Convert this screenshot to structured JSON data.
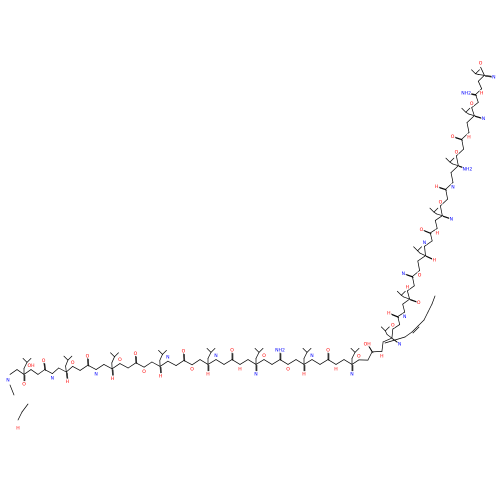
{
  "diagram": {
    "type": "skeletal-formula",
    "colors": {
      "bond": "#000000",
      "O": "#ff0000",
      "N": "#0000ff",
      "background": "#ffffff"
    },
    "atom_labels": [
      "O",
      "OH",
      "O",
      "N",
      "H",
      "O",
      "O",
      "N",
      "H",
      "O",
      "O",
      "O",
      "H",
      "N",
      "O",
      "O",
      "H",
      "N",
      "O",
      "H",
      "N",
      "O",
      "NH2",
      "O",
      "H",
      "N",
      "O",
      "H",
      "N",
      "O",
      "OH",
      "H",
      "N",
      "O",
      "H",
      "N",
      "O",
      "H",
      "N",
      "O",
      "H",
      "N",
      "O",
      "H",
      "N",
      "O",
      "H",
      "N",
      "NH2",
      "O",
      "O",
      "H",
      "N",
      "O",
      "NH2",
      "H",
      "N",
      "O",
      "H",
      "N",
      "O",
      "OH",
      "O",
      "H",
      "N",
      "O",
      "H",
      "N",
      "O",
      "OH",
      "O",
      "H",
      "N",
      "O",
      "NH",
      "H2N",
      "NH",
      "H",
      "N",
      "O",
      "H",
      "N",
      "O",
      "H",
      "N",
      "O",
      "O",
      "OH",
      "H",
      "N",
      "O",
      "H",
      "N",
      "O",
      "NH2",
      "O",
      "H",
      "N",
      "O",
      "H",
      "N",
      "O",
      "OH",
      "O",
      "H",
      "N",
      "O",
      "H",
      "N",
      "O",
      "OH",
      "H",
      "N",
      "O",
      "O",
      "H",
      "N",
      "O",
      "H",
      "N",
      "O",
      "H",
      "N",
      "O",
      "H",
      "N",
      "O",
      "OH",
      "O",
      "H",
      "N",
      "O",
      "NH2",
      "H",
      "N",
      "O",
      "OH",
      "O",
      "H",
      "N",
      "O",
      "NH2",
      "O"
    ]
  }
}
